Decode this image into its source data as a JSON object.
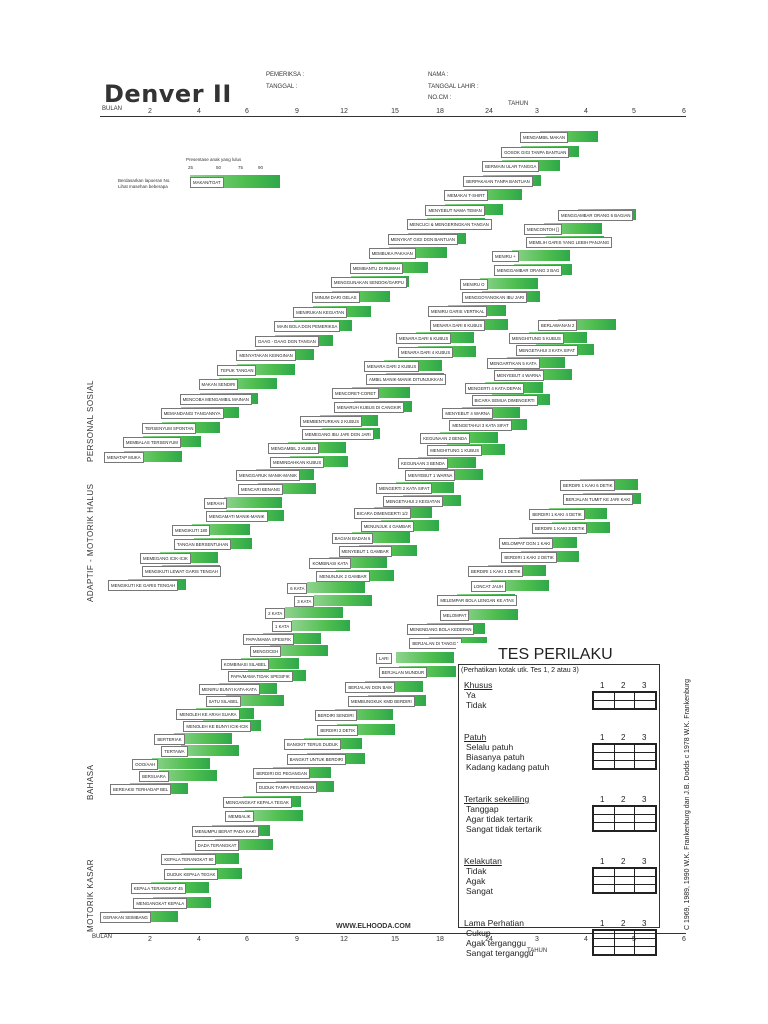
{
  "header": {
    "title": "Denver II",
    "pemeriksa_label": "PEMERIKSA :",
    "tanggal_label": "TANGGAL :",
    "nama_label": "NAMA :",
    "tanggal_lahir_label": "TANGGAL LAHIR :",
    "no_cm_label": "NO.CM :"
  },
  "axis": {
    "bulan_label": "BULAN",
    "tahun_label": "TAHUN",
    "month_ticks": [
      "2",
      "4",
      "6",
      "9",
      "12",
      "15",
      "18",
      "24"
    ],
    "year_ticks": [
      "3",
      "4",
      "5",
      "6"
    ]
  },
  "sections": {
    "personal_sosial": "PERSONAL SOSIAL",
    "motorik_halus": "ADAPTIF - MOTORIK HALUS",
    "bahasa": "BAHASA",
    "motorik_kasar": "MOTORIK KASAR"
  },
  "legend": {
    "title": "Presentase anak yang lulus",
    "percentages": [
      "25",
      "50",
      "75",
      "90"
    ],
    "note": "Berdasarkan lapoeran No. Lihat masehan beberapa",
    "example_item": "MAKAN/TOAT"
  },
  "items": {
    "ps": [
      "MENATAP MUKA",
      "MEMBALAS TERSENYUM",
      "TERSENYUM SPONTAN",
      "MEMANDANGI TANGANNYA",
      "MENCOBA MENGAMBIL MAINAN",
      "MAKAN SENDIRI",
      "TEPUK TANGAN",
      "MENYATAKAN KEINGINAN",
      "DAAG - DAAG DGN TANGAN",
      "MAIN BOLA DGN PEMERIKSA",
      "MENIRUKAN KEGIATAN",
      "MINUM DARI GELAS",
      "MENGGUNAKAN SENDOK/GARPU",
      "MEMBANTU DI RUMAH",
      "MEMBUKA PAKAIAN",
      "MENYIKAT GIGI DGN BANTUAN",
      "MENCUCI & MENGERINGKAN TANGAN",
      "MENYEBUT NAMA TEMAN",
      "MEMAKAI T-SHIRT",
      "BERPAKAIAN TANPA BANTUAN",
      "BERMAIN ULAR TANGGA",
      "GOSOK GIGI TANPA BANTUAN",
      "MENGAMBIL MAKAN"
    ],
    "mh": [
      "MENGIKUTI KE GARIS TENGAH",
      "MENGIKUTI LEWAT GARIS TENGAH",
      "MEMEGANG ICIK-ICIK",
      "TANGAN BERSENTUHAN",
      "MENGIKUTI 180",
      "MENGAMATI MANIK-MANIK",
      "MERAIH",
      "MENCARI BENANG",
      "MENGGARUK MANIK-MANIK",
      "MEMINDAHKAN KUBUS",
      "MENGAMBIL 2 KUBUS",
      "MEMEGANG IBU JARI DGN JARI",
      "MEMBENTURKAN 2 KUBUS",
      "MENARUH KUBUS DI CANGKIR",
      "MENCORET-CORET",
      "AMBIL MANIK-MANIK DITUNJUKKAN",
      "MENARA DARI 2 KUBUS",
      "MENARA DARI 4 KUBUS",
      "MENARA DARI 6 KUBUS",
      "MENARA DARI 8 KUBUS",
      "MENIRU GARIS VERTIKAL",
      "MENGGOYANGKAN IBU JARI",
      "MENIRU O",
      "MENGGAMBAR ORANG 3 BAG",
      "MENIRU +",
      "MEMILIH GARIS YANG LEBIH PANJANG",
      "MENCONTOH []",
      "MENGGAMBAR ORANG 6 BAGIAN"
    ],
    "bhs": [
      "BEREAKSI TERHADAP BEL",
      "BERSUARA",
      "OOO/AAH",
      "TERTAWA",
      "BERTERIAK",
      "MENOLEH KE BUNYI ICIK-ICIK",
      "MENOLEH KE ARAH SUARA",
      "SATU SILABEL",
      "MENIRU BUNYI KATA-KATA",
      "PAPA/MAMA TIDAK SPESIFIK",
      "KOMBINASI SILABEL",
      "MENGOCEH",
      "PAPA/MAMA SPESIFIK",
      "1 KATA",
      "2 KATA",
      "3 KATA",
      "6 KATA",
      "MENUNJUK 2 GAMBAR",
      "KOMBINASI KATA",
      "MENYEBUT 1 GAMBAR",
      "BAGIAN BADAN 6",
      "MENUNJUK 4 GAMBAR",
      "BICARA DIMENGERTI 1/2",
      "MENGETAHUI 2 KEGIATAN",
      "MENGERTI 2 KATA SIFAT",
      "MENYEBUT 1 WARNA",
      "KEGUNAAN 3 BENDA",
      "MENGHITUNG 1 KUBUS",
      "KEGUNAAN 2 BENDA",
      "MENGETAHUI 3 KATA SIFAT",
      "MENYEBUT 4 WARNA",
      "BICARA SEMUA DIMENGERTI",
      "MENGERTI 4 KATA DEPAN",
      "MENYEBUT 4 WARNA",
      "MENGARTIKAN 5 KATA",
      "MENGETAHUI 3 KATA SIFAT",
      "MENGHITUNG 5 KUBUS",
      "BERLAWANAN 2"
    ],
    "mk": [
      "GERAKAN SEIMBANG",
      "MENGANGKAT KEPALA",
      "KEPALA TERANGKAT 45",
      "DUDUK KEPALA TEGAK",
      "KEPALA TERANGKAT 90",
      "DADA TERANGKAT",
      "MENUMPU BERAT PADA KAKI",
      "MEMBALIK",
      "MENGANGKAT KEPALA TEGAK",
      "DUDUK TANPA PEGANGAN",
      "BERDIRI DG PEGANGAN",
      "BANGKIT UNTUK BERDIRI",
      "BANGKIT TERUS DUDUK",
      "BERDIRI 2 DETIK",
      "BERDIRI SENDIRI",
      "MEMBUNGKUK KMD BERDIRI",
      "BERJALAN DGN BAIK",
      "BERJALAN MUNDUR",
      "LARI",
      "BERJALAN DI TANGGA",
      "MENENDANG BOLA KEDEPAN",
      "MELOMPAT",
      "MELEMPAR BOLA LENGAN KE ATAS",
      "LONCAT JAUH",
      "BERDIRI 1 KAKI 1 DETIK",
      "BERDIRI 1 KAKI 2 DETIK",
      "MELOMPAT DGN 1 KAKI",
      "BERDIRI 1 KAKI 3 DETIK",
      "BERDIRI 1 KAKI 4 DETIK",
      "BERJALAN TUMIT KE JARI KAKI",
      "BERDIRI 1 KAKI 6 DETIK"
    ]
  },
  "tes_perilaku": {
    "title": "TES PERILAKU",
    "instruction": "(Perhatikan kotak utk. Tes 1, 2 atau 3)",
    "cols": [
      "1",
      "2",
      "3"
    ],
    "categories": [
      {
        "name": "Khusus",
        "options": [
          "Ya",
          "Tidak"
        ]
      },
      {
        "name": "Patuh",
        "options": [
          "Selalu patuh",
          "Biasanya patuh",
          "Kadang kadang patuh"
        ]
      },
      {
        "name": "Tertarik sekeliling",
        "options": [
          "Tanggap",
          "Agar tidak tertarik",
          "Sangat tidak tertarik"
        ]
      },
      {
        "name": "Kelakutan",
        "options": [
          "Tidak",
          "Agak",
          "Sangat"
        ]
      },
      {
        "name": "Lama Perhatian",
        "options": [
          "Cukup",
          "Agak terganggu",
          "Sangat terganggu"
        ]
      }
    ]
  },
  "footer": {
    "website": "WWW.ELHOODA.COM",
    "copyright": "C 1969, 1989, 1990 W.K. Frankenburg dan J.B. Dodds c 1978 W.K. Frankenburg"
  }
}
